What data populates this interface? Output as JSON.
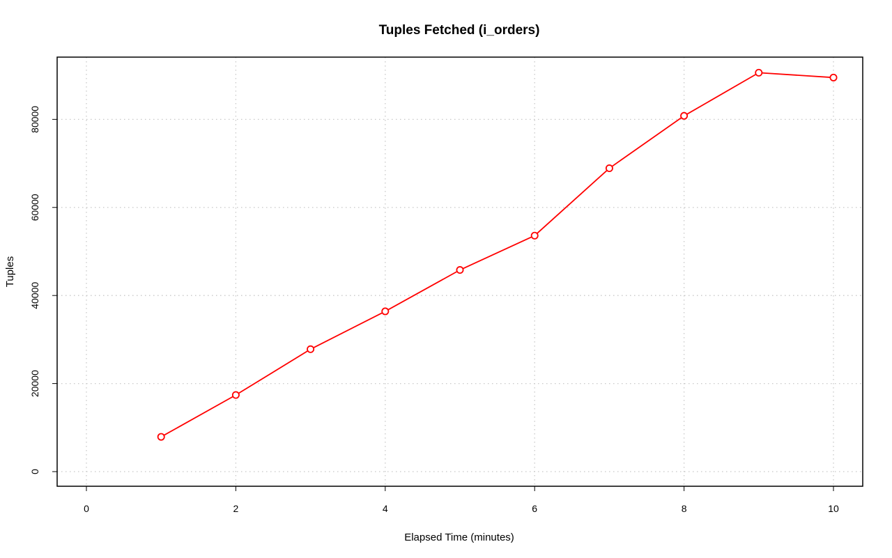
{
  "chart_data": {
    "type": "line",
    "title": "Tuples Fetched (i_orders)",
    "xlabel": "Elapsed Time (minutes)",
    "ylabel": "Tuples",
    "xlim": [
      0,
      10
    ],
    "ylim": [
      0,
      90500
    ],
    "x_ticks": [
      0,
      2,
      4,
      6,
      8,
      10
    ],
    "y_ticks": [
      0,
      20000,
      40000,
      60000,
      80000
    ],
    "grid": true,
    "legend": "none",
    "series": [
      {
        "color": "#ff0000",
        "marker": "open-circle",
        "x": [
          1,
          2,
          3,
          4,
          5,
          6,
          7,
          8,
          9,
          10
        ],
        "y": [
          7900,
          17400,
          27800,
          36400,
          45800,
          53600,
          68900,
          80800,
          90600,
          89500
        ]
      }
    ]
  }
}
